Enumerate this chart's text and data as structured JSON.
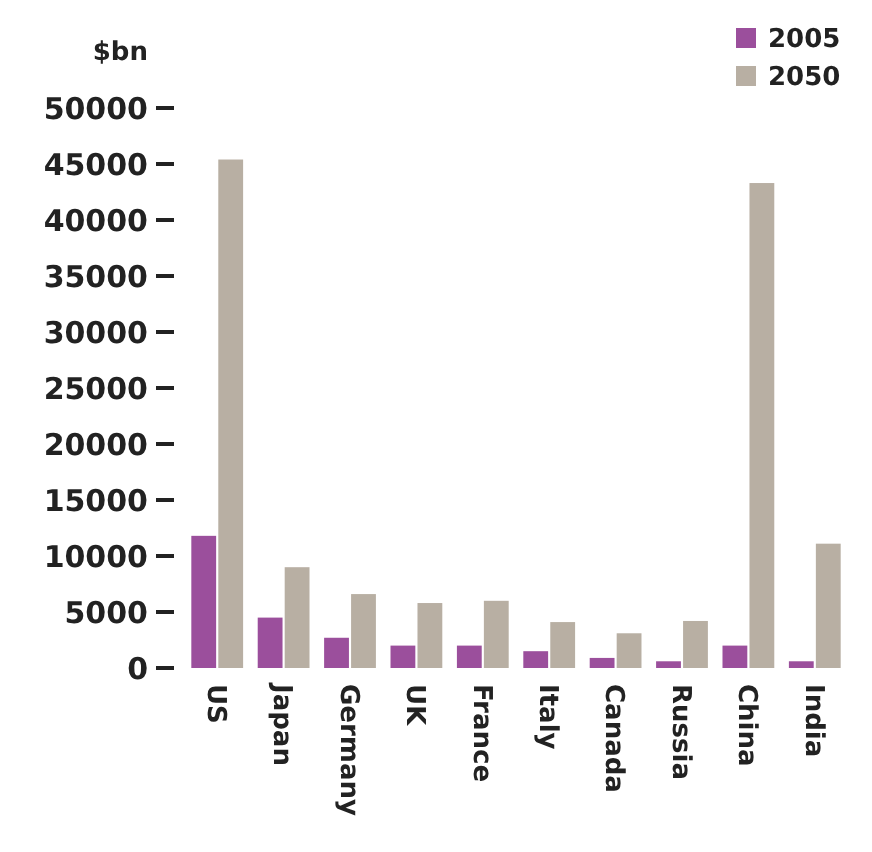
{
  "chart_data": {
    "type": "bar",
    "ylabel": "$bn",
    "categories": [
      "US",
      "Japan",
      "Germany",
      "UK",
      "France",
      "Italy",
      "Canada",
      "Russia",
      "China",
      "India"
    ],
    "series": [
      {
        "name": "2005",
        "color": "#9b4f9c",
        "values": [
          11800,
          4500,
          2700,
          2000,
          2000,
          1500,
          900,
          600,
          2000,
          600
        ]
      },
      {
        "name": "2050",
        "color": "#b8afa3",
        "values": [
          45400,
          9000,
          6600,
          5800,
          6000,
          4100,
          3100,
          4200,
          43300,
          11100
        ]
      }
    ],
    "ylim": [
      0,
      50000
    ],
    "yticks": [
      0,
      5000,
      10000,
      15000,
      20000,
      25000,
      30000,
      35000,
      40000,
      45000,
      50000
    ],
    "grid": false,
    "legend": "top right"
  }
}
